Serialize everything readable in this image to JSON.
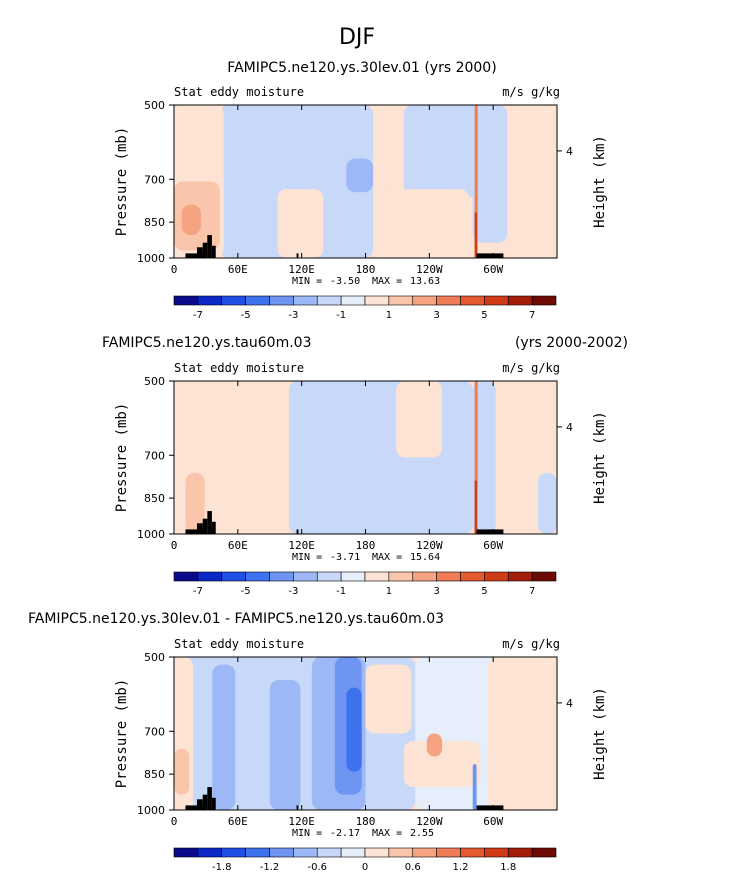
{
  "figure": {
    "title": "DJF"
  },
  "chart_data": [
    {
      "type": "heatmap",
      "title": "FAMIPC5.ne120.ys.30lev.01 (yrs 2000)",
      "title_right": "",
      "left_label": "Stat eddy moisture",
      "right_label": "m/s g/kg",
      "ylabel": "Pressure (mb)",
      "ylabel_right": "Height (km)",
      "yticks": [
        500,
        700,
        850,
        1000
      ],
      "yticks_right": [
        4
      ],
      "xticks": [
        "0",
        "60E",
        "120E",
        "180",
        "120W",
        "60W"
      ],
      "min_label": "MIN =",
      "min_value": "-3.50",
      "max_label": "MAX =",
      "max_value": "13.63",
      "colorbar": {
        "labels": [
          "-7",
          "-5",
          "-3",
          "-1",
          "1",
          "3",
          "5",
          "7"
        ],
        "colors": [
          "#0a0a8a",
          "#0b27c7",
          "#1f4fe6",
          "#3f72ee",
          "#6e95f2",
          "#9db8f6",
          "#c7d8f9",
          "#e6eefc",
          "#fde3d3",
          "#fac6ab",
          "#f5a382",
          "#ee7c55",
          "#e45a2e",
          "#cf3b16",
          "#a31e08",
          "#6e0a02"
        ]
      },
      "fields": [
        {
          "level": "neutral-positive",
          "region": "lower troposphere 0-60E"
        },
        {
          "level": "positive",
          "region": "near 60W surface"
        }
      ]
    },
    {
      "type": "heatmap",
      "title": "FAMIPC5.ne120.ys.tau60m.03",
      "title_right": "(yrs 2000-2002)",
      "left_label": "Stat eddy moisture",
      "right_label": "m/s g/kg",
      "ylabel": "Pressure (mb)",
      "ylabel_right": "Height (km)",
      "yticks": [
        500,
        700,
        850,
        1000
      ],
      "yticks_right": [
        4
      ],
      "xticks": [
        "0",
        "60E",
        "120E",
        "180",
        "120W",
        "60W"
      ],
      "min_label": "MIN =",
      "min_value": "-3.71",
      "max_label": "MAX =",
      "max_value": "15.64",
      "colorbar": {
        "labels": [
          "-7",
          "-5",
          "-3",
          "-1",
          "1",
          "3",
          "5",
          "7"
        ],
        "colors": [
          "#0a0a8a",
          "#0b27c7",
          "#1f4fe6",
          "#3f72ee",
          "#6e95f2",
          "#9db8f6",
          "#c7d8f9",
          "#e6eefc",
          "#fde3d3",
          "#fac6ab",
          "#f5a382",
          "#ee7c55",
          "#e45a2e",
          "#cf3b16",
          "#a31e08",
          "#6e0a02"
        ]
      }
    },
    {
      "type": "heatmap",
      "title": "FAMIPC5.ne120.ys.30lev.01 - FAMIPC5.ne120.ys.tau60m.03",
      "title_right": "",
      "left_label": "Stat eddy moisture",
      "right_label": "m/s g/kg",
      "ylabel": "Pressure (mb)",
      "ylabel_right": "Height (km)",
      "yticks": [
        500,
        700,
        850,
        1000
      ],
      "yticks_right": [
        4
      ],
      "xticks": [
        "0",
        "60E",
        "120E",
        "180",
        "120W",
        "60W"
      ],
      "min_label": "MIN =",
      "min_value": "-2.17",
      "max_label": "MAX =",
      "max_value": "2.55",
      "colorbar": {
        "labels": [
          "-1.8",
          "-1.2",
          "-0.6",
          "0",
          "0.6",
          "1.2",
          "1.8"
        ],
        "colors": [
          "#0a0a8a",
          "#0b27c7",
          "#1f4fe6",
          "#3f72ee",
          "#6e95f2",
          "#9db8f6",
          "#c7d8f9",
          "#e6eefc",
          "#fde3d3",
          "#fac6ab",
          "#f5a382",
          "#ee7c55",
          "#e45a2e",
          "#cf3b16",
          "#a31e08",
          "#6e0a02"
        ]
      }
    }
  ]
}
